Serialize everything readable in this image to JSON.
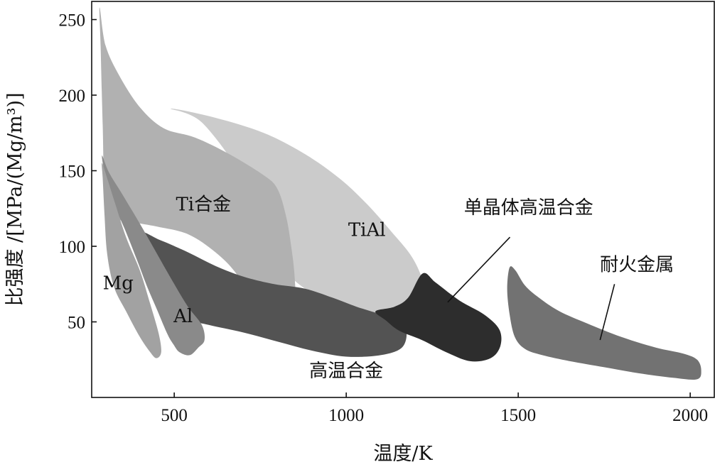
{
  "chart_data": {
    "type": "area",
    "xlabel": "温度/K",
    "ylabel": "比强度 /[MPa/(Mg/m³)]",
    "xlim": [
      260,
      2070
    ],
    "ylim": [
      0,
      262
    ],
    "x_ticks": [
      500,
      1000,
      1500,
      2000
    ],
    "y_ticks": [
      50,
      100,
      150,
      200,
      250
    ],
    "grid": false,
    "legend": "none",
    "regions": [
      {
        "name": "TiAl",
        "color": "#cbcbcb",
        "label_pos": [
          1060,
          110
        ],
        "boundary": [
          [
            490,
            191
          ],
          [
            620,
            185
          ],
          [
            760,
            175
          ],
          [
            880,
            161
          ],
          [
            980,
            145
          ],
          [
            1060,
            128
          ],
          [
            1130,
            110
          ],
          [
            1185,
            95
          ],
          [
            1215,
            82
          ],
          [
            1222,
            72
          ],
          [
            1180,
            62
          ],
          [
            1120,
            56
          ],
          [
            1040,
            56
          ],
          [
            960,
            62
          ],
          [
            880,
            72
          ],
          [
            820,
            85
          ],
          [
            760,
            110
          ],
          [
            700,
            145
          ],
          [
            580,
            182
          ]
        ]
      },
      {
        "name": "Ti合金",
        "color": "#b1b1b1",
        "label_pos": [
          585,
          127
        ],
        "boundary": [
          [
            283,
            258
          ],
          [
            300,
            233
          ],
          [
            340,
            213
          ],
          [
            400,
            192
          ],
          [
            470,
            178
          ],
          [
            560,
            172
          ],
          [
            660,
            161
          ],
          [
            760,
            147
          ],
          [
            800,
            138
          ],
          [
            825,
            120
          ],
          [
            840,
            100
          ],
          [
            850,
            80
          ],
          [
            856,
            50
          ],
          [
            851,
            42
          ],
          [
            820,
            38
          ],
          [
            780,
            48
          ],
          [
            730,
            62
          ],
          [
            680,
            82
          ],
          [
            620,
            96
          ],
          [
            540,
            108
          ],
          [
            450,
            113
          ],
          [
            380,
            116
          ],
          [
            320,
            120
          ],
          [
            298,
            138
          ],
          [
            292,
            180
          ],
          [
            286,
            232
          ]
        ]
      },
      {
        "name": "高温合金",
        "color": "#535353",
        "label_pos": [
          1000,
          17
        ],
        "boundary": [
          [
            395,
            109
          ],
          [
            460,
            104
          ],
          [
            540,
            96
          ],
          [
            620,
            87
          ],
          [
            700,
            80
          ],
          [
            790,
            75
          ],
          [
            880,
            72
          ],
          [
            960,
            66
          ],
          [
            1030,
            60
          ],
          [
            1100,
            55
          ],
          [
            1150,
            51
          ],
          [
            1175,
            44
          ],
          [
            1162,
            33
          ],
          [
            1100,
            28
          ],
          [
            1000,
            27
          ],
          [
            900,
            31
          ],
          [
            800,
            37
          ],
          [
            700,
            43
          ],
          [
            600,
            48
          ],
          [
            540,
            52
          ],
          [
            480,
            64
          ],
          [
            430,
            84
          ]
        ]
      },
      {
        "name": "单晶体高温合金",
        "color": "#2d2d2d",
        "label_pos": [
          1530,
          125
        ],
        "boundary": [
          [
            1085,
            57
          ],
          [
            1140,
            60
          ],
          [
            1180,
            66
          ],
          [
            1222,
            82
          ],
          [
            1260,
            76
          ],
          [
            1330,
            64
          ],
          [
            1400,
            55
          ],
          [
            1445,
            45
          ],
          [
            1448,
            34
          ],
          [
            1420,
            26
          ],
          [
            1360,
            24
          ],
          [
            1290,
            30
          ],
          [
            1220,
            38
          ],
          [
            1155,
            44
          ],
          [
            1115,
            51
          ]
        ]
      },
      {
        "name": "Al",
        "color": "#8a8a8a",
        "label_pos": [
          526,
          53
        ],
        "boundary": [
          [
            290,
            160
          ],
          [
            310,
            149
          ],
          [
            350,
            134
          ],
          [
            400,
            115
          ],
          [
            450,
            95
          ],
          [
            500,
            75
          ],
          [
            540,
            60
          ],
          [
            580,
            48
          ],
          [
            588,
            38
          ],
          [
            570,
            33
          ],
          [
            545,
            28
          ],
          [
            515,
            30
          ],
          [
            498,
            35
          ],
          [
            480,
            42
          ],
          [
            450,
            58
          ],
          [
            420,
            74
          ],
          [
            390,
            92
          ],
          [
            355,
            112
          ],
          [
            320,
            130
          ],
          [
            300,
            146
          ]
        ]
      },
      {
        "name": "Mg",
        "color": "#a2a2a2",
        "label_pos": [
          337,
          75
        ],
        "boundary": [
          [
            290,
            155
          ],
          [
            305,
            145
          ],
          [
            330,
            127
          ],
          [
            360,
            106
          ],
          [
            400,
            84
          ],
          [
            430,
            62
          ],
          [
            455,
            42
          ],
          [
            462,
            30
          ],
          [
            448,
            26
          ],
          [
            430,
            30
          ],
          [
            400,
            40
          ],
          [
            360,
            57
          ],
          [
            325,
            73
          ],
          [
            305,
            95
          ],
          [
            297,
            122
          ],
          [
            292,
            145
          ]
        ]
      },
      {
        "name": "耐火金属",
        "color": "#727272",
        "label_pos": [
          1845,
          87
        ],
        "boundary": [
          [
            1475,
            86
          ],
          [
            1492,
            84
          ],
          [
            1520,
            74
          ],
          [
            1560,
            66
          ],
          [
            1620,
            57
          ],
          [
            1700,
            49
          ],
          [
            1800,
            40
          ],
          [
            1900,
            33
          ],
          [
            1980,
            29
          ],
          [
            2020,
            25
          ],
          [
            2032,
            18
          ],
          [
            2020,
            12
          ],
          [
            1950,
            13
          ],
          [
            1850,
            16
          ],
          [
            1750,
            20
          ],
          [
            1650,
            24
          ],
          [
            1570,
            28
          ],
          [
            1520,
            32
          ],
          [
            1490,
            40
          ],
          [
            1475,
            55
          ],
          [
            1468,
            72
          ]
        ]
      }
    ],
    "leaders": [
      {
        "for": "单晶体高温合金",
        "from": [
          1476,
          106
        ],
        "to": [
          1295,
          63
        ]
      },
      {
        "for": "耐火金属",
        "from": [
          1780,
          75
        ],
        "to": [
          1738,
          38
        ]
      }
    ]
  }
}
